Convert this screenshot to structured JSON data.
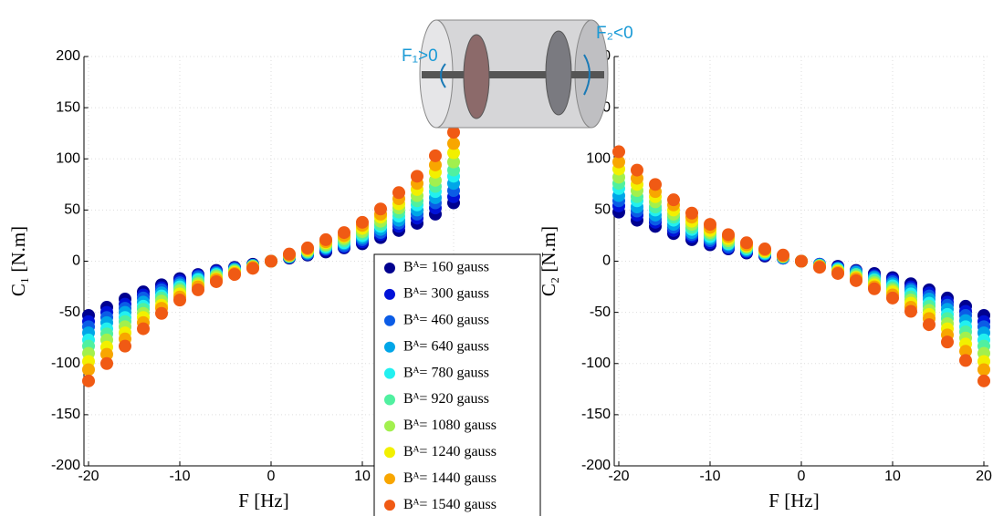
{
  "chart_data": [
    {
      "type": "scatter",
      "xlabel": "F [Hz]",
      "ylabel": "C₁ [N.m]",
      "x": [
        -20,
        -18,
        -16,
        -14,
        -12,
        -10,
        -8,
        -6,
        -4,
        -2,
        0,
        2,
        4,
        6,
        8,
        10,
        12,
        14,
        16,
        18,
        20
      ],
      "xlim": [
        -20.5,
        20.5
      ],
      "xticks": [
        -20,
        -10,
        0,
        10,
        20
      ],
      "ylim": [
        -200,
        200
      ],
      "yticks": [
        -200,
        -150,
        -100,
        -50,
        0,
        50,
        100,
        150,
        200
      ],
      "grid": true,
      "legend": "bottom-right",
      "annotations": [
        "F₁>0",
        "F₂<0"
      ],
      "series": [
        {
          "name": "Bᴬ= 160 gauss",
          "color": "#00008f",
          "values": [
            -53,
            -45,
            -37,
            -30,
            -23,
            -17,
            -13,
            -9,
            -6,
            -3,
            0,
            3,
            6,
            9,
            13,
            17,
            23,
            30,
            37,
            46,
            57
          ]
        },
        {
          "name": "Bᴬ= 300 gauss",
          "color": "#0012d8",
          "values": [
            -59,
            -50,
            -42,
            -33,
            -26,
            -19,
            -14,
            -10,
            -7,
            -4,
            0,
            4,
            7,
            11,
            14,
            19,
            26,
            34,
            42,
            52,
            63
          ]
        },
        {
          "name": "Bᴬ= 460 gauss",
          "color": "#0b5ce6",
          "values": [
            -64,
            -55,
            -46,
            -36,
            -28,
            -21,
            -15,
            -11,
            -7,
            -4,
            0,
            4,
            7,
            12,
            15,
            21,
            28,
            37,
            46,
            57,
            69
          ]
        },
        {
          "name": "Bᴬ= 640 gauss",
          "color": "#00a6e8",
          "values": [
            -70,
            -60,
            -50,
            -40,
            -31,
            -23,
            -17,
            -12,
            -8,
            -4,
            0,
            4,
            8,
            13,
            17,
            23,
            31,
            40,
            50,
            62,
            76
          ]
        },
        {
          "name": "Bᴬ= 780 gauss",
          "color": "#22f0f0",
          "values": [
            -77,
            -66,
            -55,
            -44,
            -34,
            -25,
            -18,
            -13,
            -9,
            -5,
            0,
            5,
            9,
            14,
            18,
            25,
            34,
            44,
            55,
            68,
            83
          ]
        },
        {
          "name": "Bᴬ= 920 gauss",
          "color": "#50f0a0",
          "values": [
            -83,
            -71,
            -59,
            -47,
            -36,
            -27,
            -20,
            -14,
            -9,
            -5,
            0,
            5,
            9,
            15,
            20,
            27,
            36,
            48,
            59,
            73,
            89
          ]
        },
        {
          "name": "Bᴬ= 1080 gauss",
          "color": "#a2f04e",
          "values": [
            -90,
            -77,
            -64,
            -51,
            -39,
            -29,
            -22,
            -15,
            -10,
            -5,
            0,
            5,
            10,
            16,
            22,
            29,
            39,
            52,
            64,
            79,
            97
          ]
        },
        {
          "name": "Bᴬ= 1240 gauss",
          "color": "#f2f000",
          "values": [
            -98,
            -84,
            -70,
            -55,
            -43,
            -32,
            -24,
            -17,
            -11,
            -6,
            0,
            6,
            11,
            18,
            24,
            32,
            43,
            56,
            70,
            87,
            106
          ]
        },
        {
          "name": "Bᴬ= 1440 gauss",
          "color": "#f8a600",
          "values": [
            -106,
            -91,
            -76,
            -60,
            -46,
            -35,
            -25,
            -18,
            -12,
            -6,
            0,
            6,
            12,
            19,
            25,
            35,
            46,
            61,
            76,
            94,
            115
          ]
        },
        {
          "name": "Bᴬ= 1540 gauss",
          "color": "#f05a14",
          "values": [
            -117,
            -100,
            -83,
            -66,
            -51,
            -38,
            -28,
            -20,
            -13,
            -7,
            0,
            7,
            13,
            21,
            28,
            38,
            51,
            67,
            83,
            103,
            126
          ]
        }
      ]
    },
    {
      "type": "scatter",
      "xlabel": "F [Hz]",
      "ylabel": "C₂ [N.m]",
      "x": [
        -20,
        -18,
        -16,
        -14,
        -12,
        -10,
        -8,
        -6,
        -4,
        -2,
        0,
        2,
        4,
        6,
        8,
        10,
        12,
        14,
        16,
        18,
        20
      ],
      "xlim": [
        -20.5,
        20.5
      ],
      "xticks": [
        -20,
        -10,
        0,
        10,
        20
      ],
      "ylim": [
        -200,
        200
      ],
      "yticks": [
        -200,
        -150,
        -100,
        -50,
        0,
        50,
        100,
        150,
        200
      ],
      "grid": true,
      "series": [
        {
          "color": "#00008f",
          "values": [
            48,
            40,
            34,
            27,
            21,
            16,
            12,
            8,
            5,
            3,
            0,
            -3,
            -5,
            -9,
            -12,
            -16,
            -22,
            -28,
            -36,
            -44,
            -53
          ]
        },
        {
          "color": "#0012d8",
          "values": [
            54,
            45,
            38,
            30,
            24,
            18,
            13,
            9,
            6,
            3,
            0,
            -3,
            -6,
            -10,
            -14,
            -18,
            -25,
            -31,
            -40,
            -49,
            -59
          ]
        },
        {
          "color": "#0b5ce6",
          "values": [
            59,
            49,
            41,
            33,
            26,
            20,
            14,
            10,
            7,
            3,
            0,
            -3,
            -7,
            -10,
            -15,
            -20,
            -27,
            -34,
            -43,
            -53,
            -64
          ]
        },
        {
          "color": "#00a6e8",
          "values": [
            64,
            53,
            45,
            36,
            28,
            22,
            16,
            11,
            7,
            4,
            0,
            -4,
            -7,
            -11,
            -16,
            -22,
            -29,
            -37,
            -47,
            -58,
            -70
          ]
        },
        {
          "color": "#22f0f0",
          "values": [
            71,
            59,
            50,
            40,
            31,
            24,
            17,
            12,
            8,
            4,
            0,
            -4,
            -8,
            -13,
            -18,
            -24,
            -32,
            -41,
            -52,
            -64,
            -77
          ]
        },
        {
          "color": "#50f0a0",
          "values": [
            76,
            63,
            53,
            43,
            33,
            26,
            18,
            13,
            9,
            4,
            0,
            -4,
            -9,
            -13,
            -19,
            -26,
            -35,
            -44,
            -56,
            -69,
            -83
          ]
        },
        {
          "color": "#a2f04e",
          "values": [
            82,
            69,
            58,
            46,
            36,
            28,
            20,
            14,
            9,
            5,
            0,
            -5,
            -9,
            -15,
            -21,
            -28,
            -38,
            -48,
            -61,
            -75,
            -90
          ]
        },
        {
          "color": "#f2f000",
          "values": [
            90,
            75,
            63,
            50,
            39,
            30,
            22,
            15,
            10,
            5,
            0,
            -5,
            -10,
            -16,
            -23,
            -30,
            -41,
            -52,
            -66,
            -81,
            -98
          ]
        },
        {
          "color": "#f8a600",
          "values": [
            97,
            81,
            68,
            55,
            43,
            33,
            24,
            16,
            11,
            5,
            0,
            -5,
            -11,
            -17,
            -25,
            -33,
            -45,
            -56,
            -72,
            -88,
            -106
          ]
        },
        {
          "color": "#f05a14",
          "values": [
            107,
            89,
            75,
            60,
            47,
            36,
            26,
            18,
            12,
            6,
            0,
            -6,
            -12,
            -19,
            -27,
            -36,
            -49,
            -62,
            -79,
            -97,
            -117
          ]
        }
      ]
    }
  ]
}
